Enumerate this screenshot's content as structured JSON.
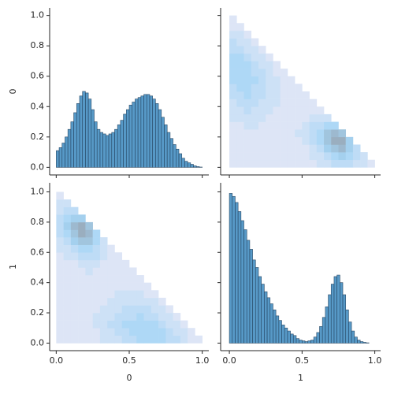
{
  "chart_data": [
    {
      "type": "histogram",
      "y_label": "0",
      "xlim": [
        -0.045,
        1.045
      ],
      "ylim": [
        -0.05,
        1.05
      ],
      "xticks": [
        0,
        0.5,
        1
      ],
      "yticks": [
        {
          "value": 0,
          "label": "0.0"
        },
        {
          "value": 0.2,
          "label": "0.2"
        },
        {
          "value": 0.4,
          "label": "0.4"
        },
        {
          "value": 0.6,
          "label": "0.6"
        },
        {
          "value": 0.8,
          "label": "0.8"
        },
        {
          "value": 1,
          "label": "1.0"
        }
      ],
      "color": "#1f77b4",
      "edge_color": "#2b4a66",
      "bins": [
        0,
        0.02,
        0.04,
        0.06,
        0.08,
        0.1,
        0.12,
        0.14,
        0.16,
        0.18,
        0.2,
        0.22,
        0.24,
        0.26,
        0.28,
        0.3,
        0.32,
        0.34,
        0.36,
        0.38,
        0.4,
        0.42,
        0.44,
        0.46,
        0.48,
        0.5,
        0.52,
        0.54,
        0.56,
        0.58,
        0.6,
        0.62,
        0.64,
        0.66,
        0.68,
        0.7,
        0.72,
        0.74,
        0.76,
        0.78,
        0.8,
        0.82,
        0.84,
        0.86,
        0.88,
        0.9,
        0.92,
        0.94,
        0.96,
        0.98,
        1
      ],
      "values": [
        0.11,
        0.13,
        0.16,
        0.2,
        0.25,
        0.3,
        0.36,
        0.42,
        0.47,
        0.5,
        0.49,
        0.45,
        0.38,
        0.3,
        0.25,
        0.23,
        0.22,
        0.21,
        0.22,
        0.23,
        0.25,
        0.28,
        0.31,
        0.35,
        0.38,
        0.41,
        0.43,
        0.45,
        0.46,
        0.47,
        0.48,
        0.48,
        0.47,
        0.45,
        0.42,
        0.38,
        0.33,
        0.28,
        0.23,
        0.19,
        0.15,
        0.12,
        0.09,
        0.06,
        0.04,
        0.03,
        0.02,
        0.01,
        0.005,
        0.002
      ]
    },
    {
      "type": "hist2d",
      "xlim": [
        -0.06,
        1.04
      ],
      "ylim": [
        -0.05,
        1.05
      ],
      "xticks": [
        0,
        0.5,
        1
      ],
      "yticks": [
        0,
        0.2,
        0.4,
        0.6,
        0.8,
        1
      ],
      "colors": [
        "#dde5f6",
        "#a6d6f6",
        "#9aaebf"
      ],
      "x_bins": [
        0,
        0.05,
        0.1,
        0.15,
        0.2,
        0.25,
        0.3,
        0.35,
        0.4,
        0.45,
        0.5,
        0.55,
        0.6,
        0.65,
        0.7,
        0.75,
        0.8,
        0.85,
        0.9,
        0.95,
        1
      ],
      "y_bins": [
        0,
        0.05,
        0.1,
        0.15,
        0.2,
        0.25,
        0.3,
        0.35,
        0.4,
        0.45,
        0.5,
        0.55,
        0.6,
        0.65,
        0.7,
        0.75,
        0.8,
        0.85,
        0.9,
        0.95,
        1
      ],
      "counts": [
        [
          1,
          1,
          1,
          1,
          1,
          1,
          1,
          1,
          1,
          1,
          1,
          1,
          2,
          2,
          3,
          3,
          3,
          2,
          2,
          1
        ],
        [
          1,
          1,
          1,
          1,
          1,
          1,
          1,
          1,
          1,
          1,
          1,
          2,
          2,
          3,
          4,
          5,
          4,
          3,
          2,
          0
        ],
        [
          1,
          1,
          1,
          1,
          1,
          1,
          1,
          1,
          1,
          1,
          1,
          2,
          3,
          5,
          6,
          7,
          5,
          3,
          0,
          0
        ],
        [
          1,
          1,
          1,
          1,
          1,
          1,
          1,
          1,
          1,
          1,
          2,
          3,
          4,
          6,
          8,
          8,
          5,
          0,
          0,
          0
        ],
        [
          1,
          1,
          1,
          1,
          1,
          1,
          1,
          1,
          1,
          2,
          2,
          3,
          4,
          6,
          7,
          6,
          0,
          0,
          0,
          0
        ],
        [
          1,
          1,
          2,
          2,
          1,
          1,
          1,
          1,
          1,
          1,
          2,
          3,
          3,
          4,
          4,
          0,
          0,
          0,
          0,
          0
        ],
        [
          2,
          2,
          2,
          2,
          2,
          1,
          1,
          1,
          1,
          1,
          1,
          2,
          2,
          2,
          0,
          0,
          0,
          0,
          0,
          0
        ],
        [
          2,
          2,
          3,
          2,
          2,
          2,
          1,
          1,
          1,
          1,
          1,
          1,
          1,
          0,
          0,
          0,
          0,
          0,
          0,
          0
        ],
        [
          2,
          3,
          3,
          3,
          2,
          2,
          2,
          1,
          1,
          1,
          1,
          1,
          0,
          0,
          0,
          0,
          0,
          0,
          0,
          0
        ],
        [
          3,
          3,
          4,
          3,
          3,
          2,
          2,
          1,
          1,
          1,
          1,
          0,
          0,
          0,
          0,
          0,
          0,
          0,
          0,
          0
        ],
        [
          3,
          4,
          4,
          3,
          3,
          2,
          2,
          1,
          1,
          1,
          0,
          0,
          0,
          0,
          0,
          0,
          0,
          0,
          0,
          0
        ],
        [
          4,
          4,
          4,
          4,
          3,
          2,
          2,
          1,
          1,
          0,
          0,
          0,
          0,
          0,
          0,
          0,
          0,
          0,
          0,
          0
        ],
        [
          4,
          4,
          4,
          3,
          3,
          2,
          1,
          1,
          0,
          0,
          0,
          0,
          0,
          0,
          0,
          0,
          0,
          0,
          0,
          0
        ],
        [
          4,
          4,
          4,
          3,
          2,
          2,
          1,
          0,
          0,
          0,
          0,
          0,
          0,
          0,
          0,
          0,
          0,
          0,
          0,
          0
        ],
        [
          4,
          4,
          3,
          2,
          2,
          1,
          0,
          0,
          0,
          0,
          0,
          0,
          0,
          0,
          0,
          0,
          0,
          0,
          0,
          0
        ],
        [
          3,
          3,
          2,
          2,
          1,
          0,
          0,
          0,
          0,
          0,
          0,
          0,
          0,
          0,
          0,
          0,
          0,
          0,
          0,
          0
        ],
        [
          3,
          2,
          2,
          1,
          0,
          0,
          0,
          0,
          0,
          0,
          0,
          0,
          0,
          0,
          0,
          0,
          0,
          0,
          0,
          0
        ],
        [
          2,
          2,
          1,
          0,
          0,
          0,
          0,
          0,
          0,
          0,
          0,
          0,
          0,
          0,
          0,
          0,
          0,
          0,
          0,
          0
        ],
        [
          1,
          1,
          0,
          0,
          0,
          0,
          0,
          0,
          0,
          0,
          0,
          0,
          0,
          0,
          0,
          0,
          0,
          0,
          0,
          0
        ],
        [
          1,
          0,
          0,
          0,
          0,
          0,
          0,
          0,
          0,
          0,
          0,
          0,
          0,
          0,
          0,
          0,
          0,
          0,
          0,
          0
        ]
      ]
    },
    {
      "type": "hist2d",
      "x_label": "0",
      "y_label": "1",
      "xlim": [
        -0.045,
        1.045
      ],
      "ylim": [
        -0.05,
        1.06
      ],
      "xticks": [
        {
          "value": 0,
          "label": "0.0"
        },
        {
          "value": 0.5,
          "label": "0.5"
        },
        {
          "value": 1,
          "label": "1.0"
        }
      ],
      "yticks": [
        {
          "value": 0,
          "label": "0.0"
        },
        {
          "value": 0.2,
          "label": "0.2"
        },
        {
          "value": 0.4,
          "label": "0.4"
        },
        {
          "value": 0.6,
          "label": "0.6"
        },
        {
          "value": 0.8,
          "label": "0.8"
        },
        {
          "value": 1,
          "label": "1.0"
        }
      ],
      "colors": [
        "#dde5f6",
        "#a6d6f6",
        "#9aaebf"
      ],
      "x_bins": [
        0,
        0.05,
        0.1,
        0.15,
        0.2,
        0.25,
        0.3,
        0.35,
        0.4,
        0.45,
        0.5,
        0.55,
        0.6,
        0.65,
        0.7,
        0.75,
        0.8,
        0.85,
        0.9,
        0.95,
        1
      ],
      "y_bins": [
        0,
        0.05,
        0.1,
        0.15,
        0.2,
        0.25,
        0.3,
        0.35,
        0.4,
        0.45,
        0.5,
        0.55,
        0.6,
        0.65,
        0.7,
        0.75,
        0.8,
        0.85,
        0.9,
        0.95,
        1
      ],
      "counts": [
        [
          1,
          1,
          1,
          1,
          1,
          1,
          2,
          2,
          2,
          3,
          3,
          4,
          4,
          4,
          4,
          3,
          3,
          2,
          1,
          1
        ],
        [
          1,
          1,
          1,
          1,
          1,
          1,
          2,
          2,
          3,
          3,
          4,
          4,
          4,
          4,
          4,
          3,
          2,
          2,
          1,
          0
        ],
        [
          1,
          1,
          1,
          1,
          1,
          2,
          2,
          3,
          3,
          4,
          4,
          4,
          4,
          4,
          3,
          2,
          2,
          1,
          0,
          0
        ],
        [
          1,
          1,
          1,
          1,
          1,
          2,
          2,
          2,
          3,
          3,
          3,
          4,
          3,
          3,
          2,
          2,
          1,
          0,
          0,
          0
        ],
        [
          1,
          1,
          1,
          1,
          1,
          1,
          2,
          2,
          2,
          3,
          3,
          3,
          3,
          2,
          2,
          1,
          0,
          0,
          0,
          0
        ],
        [
          1,
          1,
          1,
          1,
          1,
          1,
          1,
          2,
          2,
          2,
          2,
          2,
          2,
          2,
          1,
          0,
          0,
          0,
          0,
          0
        ],
        [
          1,
          1,
          1,
          1,
          1,
          1,
          1,
          1,
          2,
          2,
          2,
          2,
          1,
          1,
          0,
          0,
          0,
          0,
          0,
          0
        ],
        [
          1,
          1,
          1,
          1,
          1,
          1,
          1,
          1,
          1,
          1,
          1,
          1,
          1,
          0,
          0,
          0,
          0,
          0,
          0,
          0
        ],
        [
          1,
          1,
          1,
          1,
          1,
          1,
          1,
          1,
          1,
          1,
          1,
          1,
          0,
          0,
          0,
          0,
          0,
          0,
          0,
          0
        ],
        [
          1,
          1,
          1,
          1,
          2,
          1,
          1,
          1,
          1,
          1,
          1,
          0,
          0,
          0,
          0,
          0,
          0,
          0,
          0,
          0
        ],
        [
          1,
          1,
          1,
          2,
          2,
          2,
          1,
          1,
          1,
          1,
          0,
          0,
          0,
          0,
          0,
          0,
          0,
          0,
          0,
          0
        ],
        [
          1,
          2,
          2,
          3,
          3,
          3,
          2,
          1,
          1,
          0,
          0,
          0,
          0,
          0,
          0,
          0,
          0,
          0,
          0,
          0
        ],
        [
          2,
          2,
          3,
          4,
          4,
          3,
          2,
          1,
          0,
          0,
          0,
          0,
          0,
          0,
          0,
          0,
          0,
          0,
          0,
          0
        ],
        [
          2,
          3,
          5,
          6,
          6,
          4,
          2,
          0,
          0,
          0,
          0,
          0,
          0,
          0,
          0,
          0,
          0,
          0,
          0,
          0
        ],
        [
          3,
          4,
          6,
          8,
          7,
          4,
          0,
          0,
          0,
          0,
          0,
          0,
          0,
          0,
          0,
          0,
          0,
          0,
          0,
          0
        ],
        [
          3,
          5,
          7,
          8,
          6,
          0,
          0,
          0,
          0,
          0,
          0,
          0,
          0,
          0,
          0,
          0,
          0,
          0,
          0,
          0
        ],
        [
          3,
          4,
          5,
          5,
          0,
          0,
          0,
          0,
          0,
          0,
          0,
          0,
          0,
          0,
          0,
          0,
          0,
          0,
          0,
          0
        ],
        [
          2,
          3,
          3,
          0,
          0,
          0,
          0,
          0,
          0,
          0,
          0,
          0,
          0,
          0,
          0,
          0,
          0,
          0,
          0,
          0
        ],
        [
          2,
          2,
          0,
          0,
          0,
          0,
          0,
          0,
          0,
          0,
          0,
          0,
          0,
          0,
          0,
          0,
          0,
          0,
          0,
          0
        ],
        [
          1,
          0,
          0,
          0,
          0,
          0,
          0,
          0,
          0,
          0,
          0,
          0,
          0,
          0,
          0,
          0,
          0,
          0,
          0,
          0
        ]
      ]
    },
    {
      "type": "histogram",
      "x_label": "1",
      "xlim": [
        -0.06,
        1.04
      ],
      "ylim": [
        -0.05,
        1.06
      ],
      "xticks": [
        {
          "value": 0,
          "label": "0.0"
        },
        {
          "value": 0.5,
          "label": "0.5"
        },
        {
          "value": 1,
          "label": "1.0"
        }
      ],
      "yticks": [
        0,
        0.2,
        0.4,
        0.6,
        0.8,
        1
      ],
      "color": "#1f77b4",
      "edge_color": "#2b4a66",
      "bins": [
        0,
        0.02,
        0.04,
        0.06,
        0.08,
        0.1,
        0.12,
        0.14,
        0.16,
        0.18,
        0.2,
        0.22,
        0.24,
        0.26,
        0.28,
        0.3,
        0.32,
        0.34,
        0.36,
        0.38,
        0.4,
        0.42,
        0.44,
        0.46,
        0.48,
        0.5,
        0.52,
        0.54,
        0.56,
        0.58,
        0.6,
        0.62,
        0.64,
        0.66,
        0.68,
        0.7,
        0.72,
        0.74,
        0.76,
        0.78,
        0.8,
        0.82,
        0.84,
        0.86,
        0.88,
        0.9,
        0.92,
        0.94,
        0.96,
        0.98,
        1
      ],
      "values": [
        0.99,
        0.97,
        0.93,
        0.87,
        0.81,
        0.75,
        0.68,
        0.62,
        0.55,
        0.5,
        0.44,
        0.39,
        0.34,
        0.3,
        0.26,
        0.22,
        0.18,
        0.15,
        0.12,
        0.1,
        0.08,
        0.06,
        0.05,
        0.03,
        0.02,
        0.015,
        0.01,
        0.015,
        0.02,
        0.04,
        0.07,
        0.11,
        0.17,
        0.24,
        0.32,
        0.39,
        0.44,
        0.45,
        0.4,
        0.32,
        0.22,
        0.14,
        0.08,
        0.04,
        0.02,
        0.01,
        0.005,
        0.002,
        0,
        0
      ]
    }
  ]
}
